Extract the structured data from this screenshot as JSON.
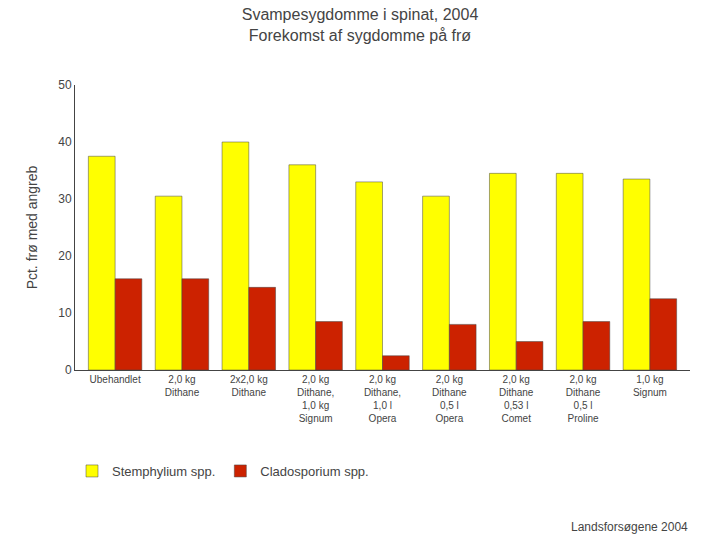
{
  "chart_data": {
    "type": "bar",
    "title": "Svampesygdomme i spinat, 2004",
    "subtitle": "Forekomst af sygdomme på frø",
    "ylabel": "Pct. frø med angreb",
    "categories": [
      "Ubehandlet",
      "2,0 kg\nDithane",
      "2x2,0 kg\nDithane",
      "2,0 kg\nDithane,\n1,0 kg\nSignum",
      "2,0 kg\nDithane,\n1,0 l\nOpera",
      "2,0 kg\nDithane\n0,5 l\nOpera",
      "2,0 kg\nDithane\n0,53 l\nComet",
      "2,0 kg\nDithane\n0,5 l\nProline",
      "1,0 kg\nSignum"
    ],
    "series": [
      {
        "name": "Stemphylium spp.",
        "color": "#FFFF00",
        "values": [
          37.5,
          30.5,
          40.0,
          36.0,
          33.0,
          30.5,
          34.5,
          34.5,
          33.5
        ]
      },
      {
        "name": "Cladosporium spp.",
        "color": "#CC2200",
        "values": [
          16.0,
          16.0,
          14.5,
          8.5,
          2.5,
          8.0,
          5.0,
          8.5,
          12.5
        ]
      }
    ],
    "ylim": [
      0,
      50
    ],
    "yticks": [
      0,
      10,
      20,
      30,
      40,
      50
    ],
    "grid": false,
    "legend": "lower left",
    "annotations": [
      "Landsforsøgene 2004"
    ]
  }
}
